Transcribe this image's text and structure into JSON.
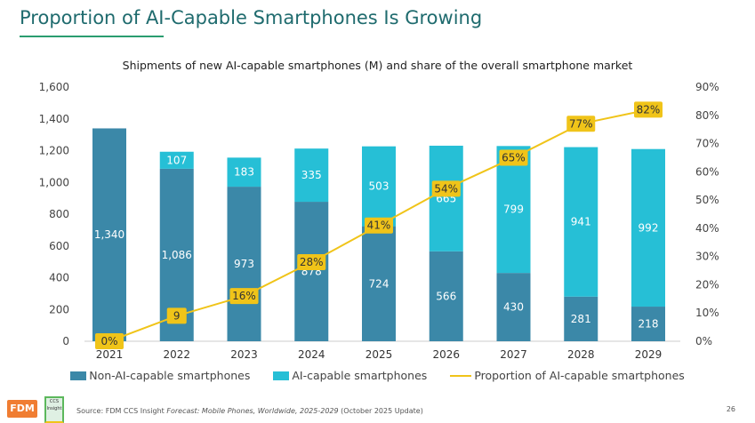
{
  "title": "Proportion of AI-Capable Smartphones Is Growing",
  "footer": {
    "source_prefix": "Source: FDM CCS Insight ",
    "source_italic": "Forecast: Mobile Phones, Worldwide, 2025-2029",
    "source_suffix": " (October 2025 Update)",
    "page": "26",
    "logo_fdm": "FDM",
    "logo_ccs": "CCS Insight"
  },
  "chart_data": {
    "type": "bar",
    "title": "Shipments of new AI-capable smartphones (M) and share of the overall smartphone market",
    "stacked": true,
    "categories": [
      "2021",
      "2022",
      "2023",
      "2024",
      "2025",
      "2026",
      "2027",
      "2028",
      "2029"
    ],
    "series": [
      {
        "name": "Non-AI-capable smartphones",
        "values": [
          1340,
          1086,
          973,
          878,
          724,
          566,
          430,
          281,
          218
        ],
        "color": "#3b88a8",
        "labels": [
          "1,340",
          "1,086",
          "973",
          "878",
          "724",
          "566",
          "430",
          "281",
          "218"
        ]
      },
      {
        "name": "AI-capable smartphones",
        "values": [
          0,
          107,
          183,
          335,
          503,
          665,
          799,
          941,
          992
        ],
        "color": "#26bfd6",
        "labels": [
          "",
          "107",
          "183",
          "335",
          "503",
          "665",
          "799",
          "941",
          "992"
        ]
      },
      {
        "name": "Proportion of AI-capable smartphones",
        "type": "line",
        "axis": "right",
        "values": [
          0,
          9,
          16,
          28,
          41,
          54,
          65,
          77,
          82
        ],
        "color": "#f0c419",
        "labels": [
          "0%",
          "9",
          "16%",
          "28%",
          "41%",
          "54%",
          "65%",
          "77%",
          "82%"
        ]
      }
    ],
    "ylim": [
      0,
      1600
    ],
    "yticks": [
      "0",
      "200",
      "400",
      "600",
      "800",
      "1,000",
      "1,200",
      "1,400",
      "1,600"
    ],
    "y2lim": [
      0,
      90
    ],
    "y2ticks": [
      "0%",
      "10%",
      "20%",
      "30%",
      "40%",
      "50%",
      "60%",
      "70%",
      "80%",
      "90%"
    ],
    "grid": false,
    "legend": "bottom"
  }
}
